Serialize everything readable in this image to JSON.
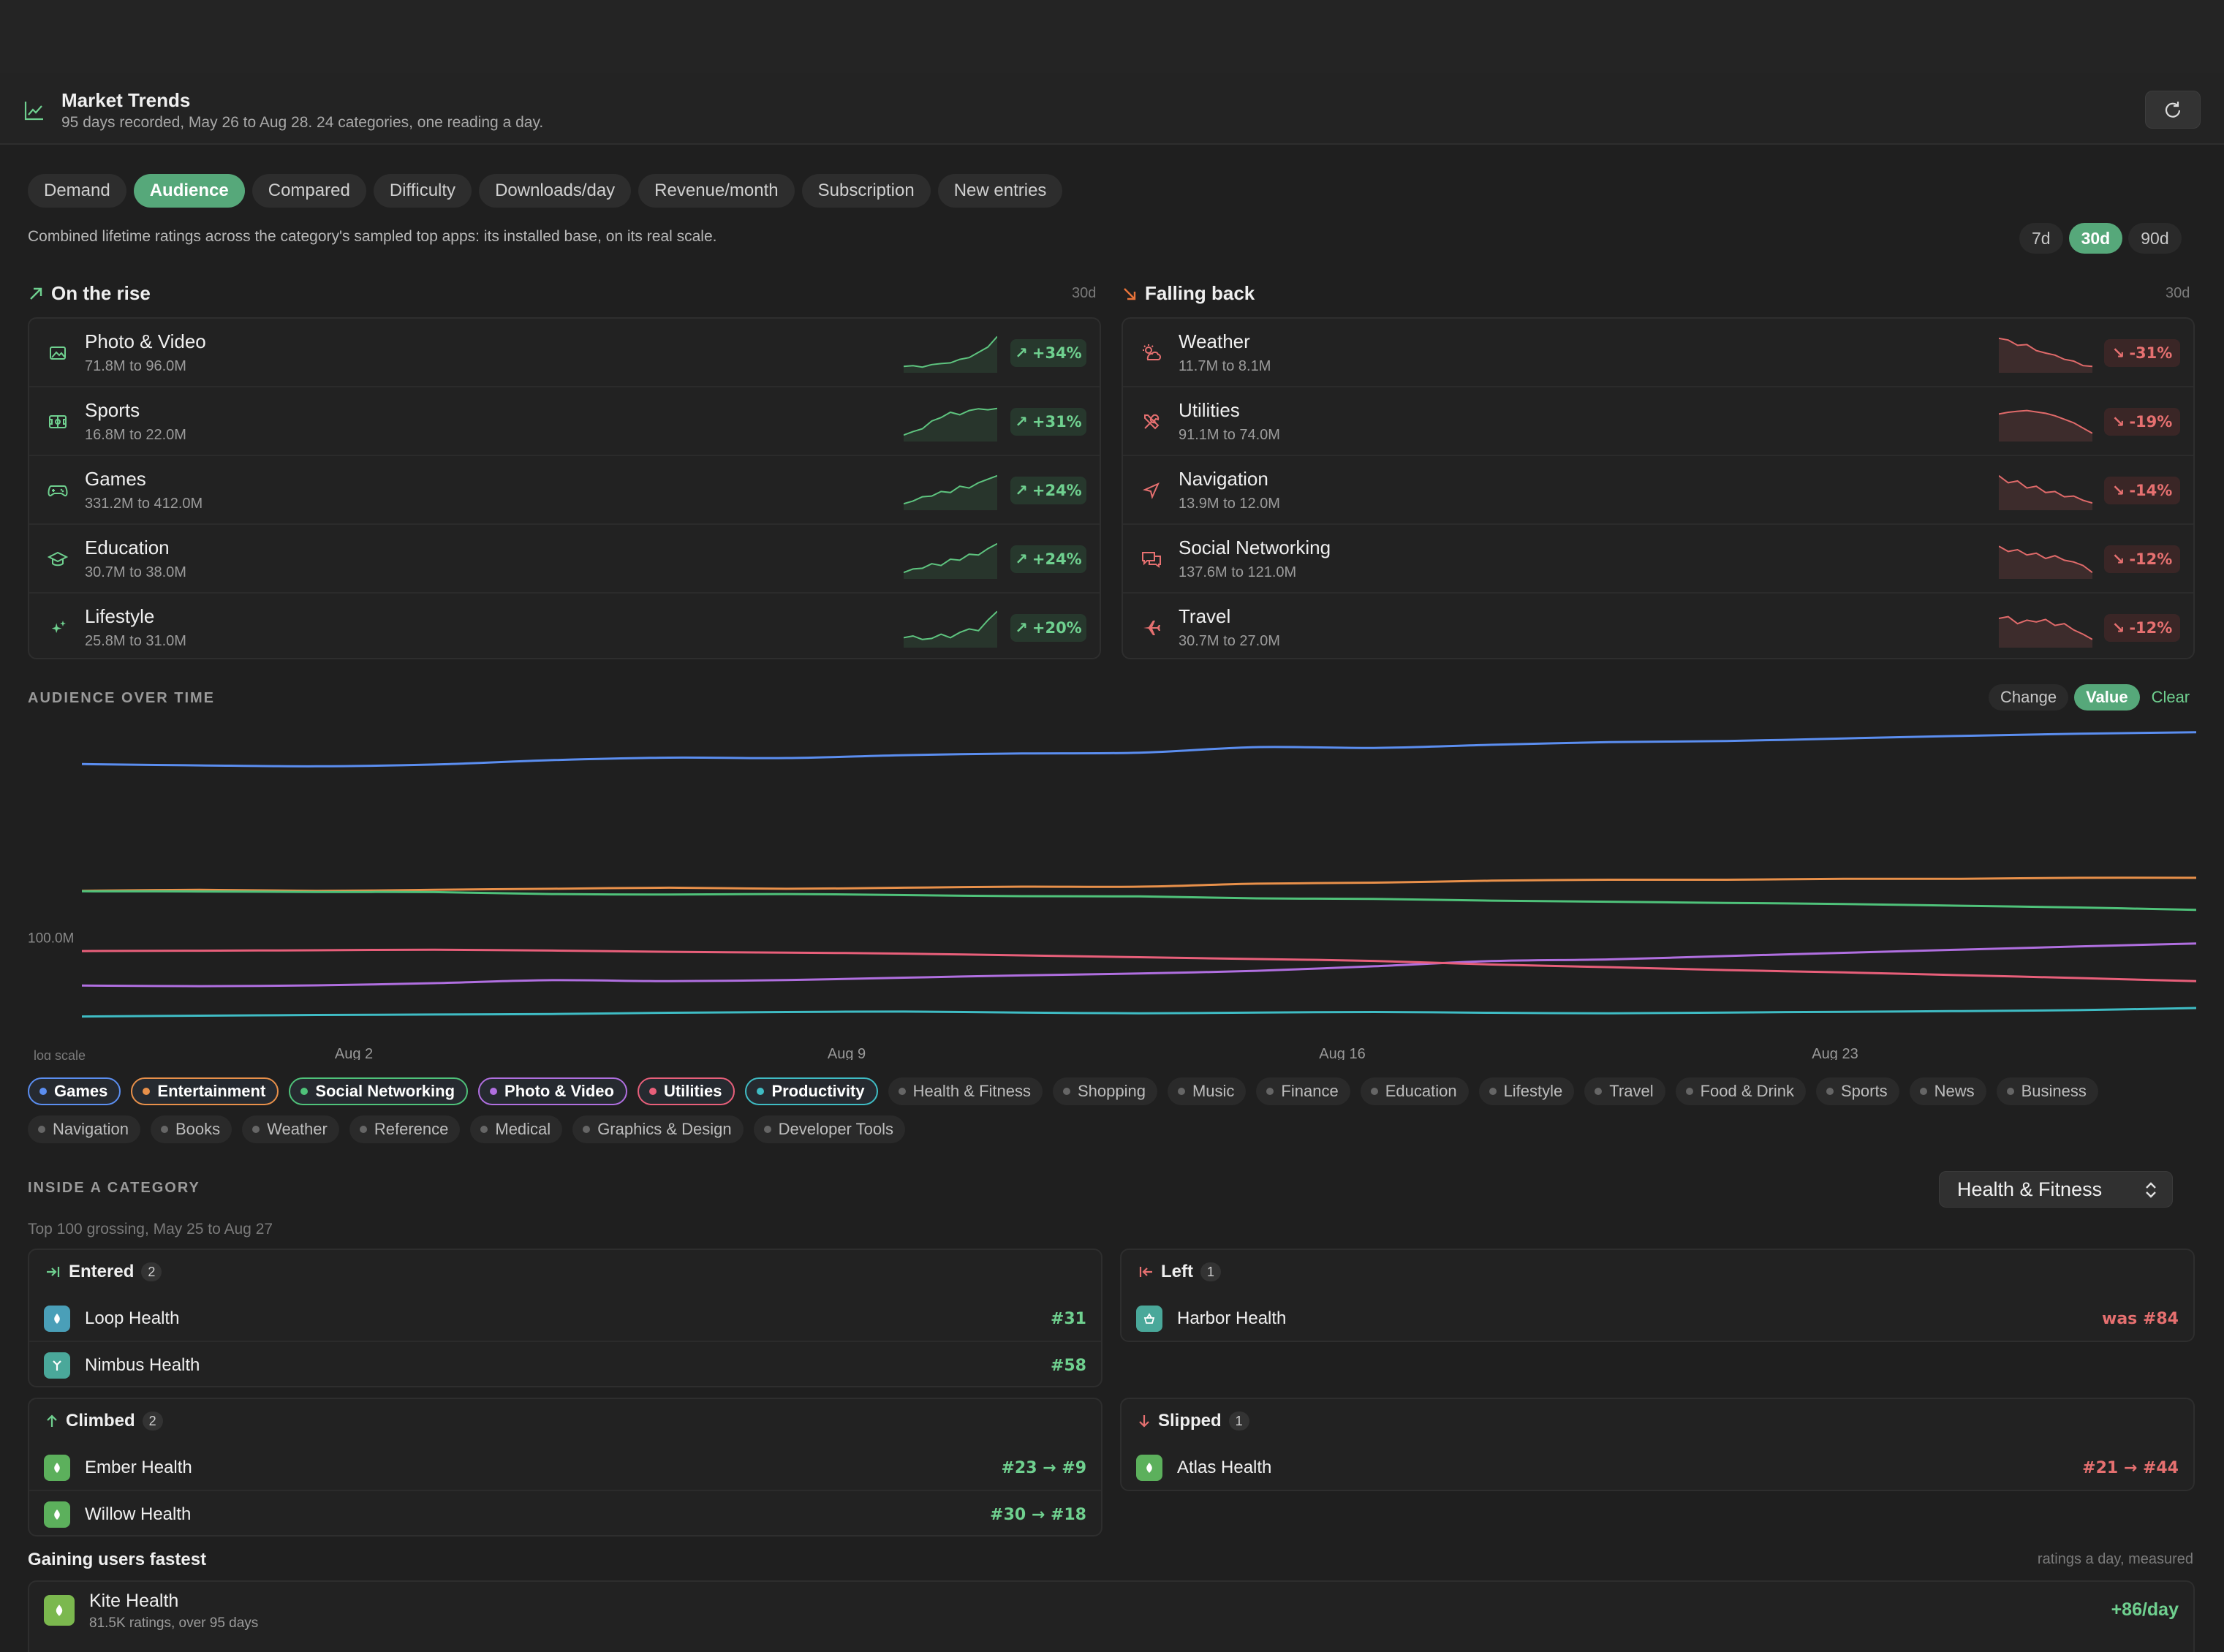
{
  "header": {
    "title": "Market Trends",
    "subtitle": "95 days recorded, May 26 to Aug 28. 24 categories, one reading a day."
  },
  "tabs": [
    {
      "label": "Demand",
      "active": false
    },
    {
      "label": "Audience",
      "active": true
    },
    {
      "label": "Compared",
      "active": false
    },
    {
      "label": "Difficulty",
      "active": false
    },
    {
      "label": "Downloads/day",
      "active": false
    },
    {
      "label": "Revenue/month",
      "active": false
    },
    {
      "label": "Subscription",
      "active": false
    },
    {
      "label": "New entries",
      "active": false
    }
  ],
  "description": "Combined lifetime ratings across the category's sampled top apps: its installed base, on its real scale.",
  "range": {
    "options": [
      "7d",
      "30d",
      "90d"
    ],
    "selected": "30d"
  },
  "rising": {
    "title": "On the rise",
    "period": "30d",
    "items": [
      {
        "name": "Photo & Video",
        "range": "71.8M to 96.0M",
        "change": "+34%",
        "icon": "photo-icon",
        "spark": [
          0.1,
          0.12,
          0.08,
          0.15,
          0.18,
          0.2,
          0.3,
          0.35,
          0.5,
          0.65,
          0.95
        ]
      },
      {
        "name": "Sports",
        "range": "16.8M to 22.0M",
        "change": "+31%",
        "icon": "sports-icon",
        "spark": [
          0.1,
          0.2,
          0.28,
          0.5,
          0.6,
          0.75,
          0.68,
          0.8,
          0.85,
          0.82,
          0.86
        ]
      },
      {
        "name": "Games",
        "range": "331.2M to 412.0M",
        "change": "+24%",
        "icon": "gamepad-icon",
        "spark": [
          0.1,
          0.18,
          0.3,
          0.32,
          0.45,
          0.42,
          0.6,
          0.55,
          0.7,
          0.8,
          0.9
        ]
      },
      {
        "name": "Education",
        "range": "30.7M to 38.0M",
        "change": "+24%",
        "icon": "graduation-cap-icon",
        "spark": [
          0.1,
          0.2,
          0.22,
          0.35,
          0.3,
          0.48,
          0.45,
          0.62,
          0.6,
          0.78,
          0.92
        ]
      },
      {
        "name": "Lifestyle",
        "range": "25.8M to 31.0M",
        "change": "+20%",
        "icon": "sparkle-icon",
        "spark": [
          0.2,
          0.25,
          0.15,
          0.18,
          0.3,
          0.2,
          0.35,
          0.45,
          0.4,
          0.7,
          0.95
        ]
      }
    ]
  },
  "falling": {
    "title": "Falling back",
    "period": "30d",
    "items": [
      {
        "name": "Weather",
        "range": "11.7M to 8.1M",
        "change": "-31%",
        "icon": "cloud-sun-icon",
        "spark": [
          0.9,
          0.85,
          0.7,
          0.72,
          0.55,
          0.48,
          0.42,
          0.3,
          0.25,
          0.12,
          0.1
        ]
      },
      {
        "name": "Utilities",
        "range": "91.1M to 74.0M",
        "change": "-19%",
        "icon": "tools-icon",
        "spark": [
          0.7,
          0.75,
          0.78,
          0.8,
          0.76,
          0.72,
          0.65,
          0.55,
          0.45,
          0.3,
          0.15
        ]
      },
      {
        "name": "Navigation",
        "range": "13.9M to 12.0M",
        "change": "-14%",
        "icon": "navigation-arrow-icon",
        "spark": [
          0.9,
          0.7,
          0.75,
          0.55,
          0.6,
          0.42,
          0.45,
          0.3,
          0.32,
          0.2,
          0.12
        ]
      },
      {
        "name": "Social Networking",
        "range": "137.6M to 121.0M",
        "change": "-12%",
        "icon": "chat-bubbles-icon",
        "spark": [
          0.85,
          0.7,
          0.75,
          0.6,
          0.65,
          0.5,
          0.58,
          0.45,
          0.4,
          0.3,
          0.1
        ]
      },
      {
        "name": "Travel",
        "range": "30.7M to 27.0M",
        "change": "-12%",
        "icon": "airplane-icon",
        "spark": [
          0.75,
          0.8,
          0.6,
          0.7,
          0.65,
          0.72,
          0.55,
          0.6,
          0.42,
          0.3,
          0.15
        ]
      }
    ]
  },
  "audience": {
    "title": "AUDIENCE OVER TIME",
    "modes": [
      {
        "label": "Change",
        "active": false
      },
      {
        "label": "Value",
        "active": true
      }
    ],
    "clear_label": "Clear"
  },
  "chart_data": {
    "type": "line",
    "y_scale": "log",
    "scale_label": "log scale",
    "ytick": "100.0M",
    "x_ticks": [
      "Aug 2",
      "Aug 9",
      "Aug 16",
      "Aug 23"
    ],
    "series": [
      {
        "name": "Games",
        "color": "#5b8ef0",
        "values": [
          331,
          328,
          326,
          330,
          340,
          346,
          345,
          352,
          356,
          358,
          372,
          370,
          378,
          385,
          388,
          395,
          402,
          408,
          412
        ]
      },
      {
        "name": "Entertainment",
        "color": "#e8904a",
        "values": [
          138,
          139,
          138,
          139,
          140,
          141,
          140,
          141,
          142,
          142,
          145,
          146,
          148,
          149,
          149,
          150,
          150,
          151,
          151
        ]
      },
      {
        "name": "Social Networking",
        "color": "#4fc27a",
        "values": [
          137.6,
          137.4,
          137,
          136.8,
          135,
          134.5,
          135,
          134,
          133,
          132.8,
          131,
          130.5,
          129,
          128,
          127,
          126,
          124.5,
          123,
          121
        ]
      },
      {
        "name": "Photo & Video",
        "color": "#b06fe0",
        "values": [
          71.8,
          71.5,
          71.9,
          73,
          74.5,
          74,
          74.6,
          75.8,
          77,
          78,
          79.5,
          82,
          85,
          86,
          88,
          90,
          92,
          94,
          96
        ]
      },
      {
        "name": "Utilities",
        "color": "#e85f7a",
        "values": [
          91.1,
          91.3,
          91.6,
          91.9,
          91.4,
          90.6,
          90.1,
          89.5,
          88.4,
          87.3,
          86.2,
          85.1,
          83,
          81.5,
          79.9,
          78.6,
          77.1,
          75.6,
          74
        ]
      },
      {
        "name": "Productivity",
        "color": "#3fbcc4",
        "values": [
          58,
          58.3,
          58.6,
          58.8,
          59,
          59.5,
          59.8,
          60,
          59.6,
          59.3,
          59.6,
          59.8,
          59.5,
          59.3,
          59.6,
          59.9,
          60.2,
          60.6,
          61.5
        ]
      }
    ]
  },
  "category_chips": [
    {
      "label": "Games",
      "on": true,
      "color": "#5b8ef0"
    },
    {
      "label": "Entertainment",
      "on": true,
      "color": "#e8904a"
    },
    {
      "label": "Social Networking",
      "on": true,
      "color": "#4fc27a"
    },
    {
      "label": "Photo & Video",
      "on": true,
      "color": "#b06fe0"
    },
    {
      "label": "Utilities",
      "on": true,
      "color": "#e85f7a"
    },
    {
      "label": "Productivity",
      "on": true,
      "color": "#3fbcc4"
    },
    {
      "label": "Health & Fitness",
      "on": false
    },
    {
      "label": "Shopping",
      "on": false
    },
    {
      "label": "Music",
      "on": false
    },
    {
      "label": "Finance",
      "on": false
    },
    {
      "label": "Education",
      "on": false
    },
    {
      "label": "Lifestyle",
      "on": false
    },
    {
      "label": "Travel",
      "on": false
    },
    {
      "label": "Food & Drink",
      "on": false
    },
    {
      "label": "Sports",
      "on": false
    },
    {
      "label": "News",
      "on": false
    },
    {
      "label": "Business",
      "on": false
    },
    {
      "label": "Navigation",
      "on": false
    },
    {
      "label": "Books",
      "on": false
    },
    {
      "label": "Weather",
      "on": false
    },
    {
      "label": "Reference",
      "on": false
    },
    {
      "label": "Medical",
      "on": false
    },
    {
      "label": "Graphics & Design",
      "on": false
    },
    {
      "label": "Developer Tools",
      "on": false
    }
  ],
  "inside": {
    "title": "INSIDE A CATEGORY",
    "subtitle": "Top 100 grossing, May 25 to Aug 27",
    "selected_category": "Health & Fitness",
    "entered": {
      "title": "Entered",
      "count": "2",
      "apps": [
        {
          "name": "Loop Health",
          "rank": "#31",
          "color": "#4a9fb8"
        },
        {
          "name": "Nimbus Health",
          "rank": "#58",
          "color": "#4aa89a"
        }
      ]
    },
    "left": {
      "title": "Left",
      "count": "1",
      "apps": [
        {
          "name": "Harbor Health",
          "rank": "was #84",
          "color": "#4aa89a"
        }
      ]
    },
    "climbed": {
      "title": "Climbed",
      "count": "2",
      "apps": [
        {
          "name": "Ember Health",
          "rank": "#23 → #9",
          "color": "#5cb05c"
        },
        {
          "name": "Willow Health",
          "rank": "#30 → #18",
          "color": "#5cb05c"
        }
      ]
    },
    "slipped": {
      "title": "Slipped",
      "count": "1",
      "apps": [
        {
          "name": "Atlas Health",
          "rank": "#21 → #44",
          "color": "#5cb05c"
        }
      ]
    }
  },
  "gaining": {
    "title": "Gaining users fastest",
    "note": "ratings a day, measured",
    "apps": [
      {
        "name": "Kite Health",
        "sub": "81.5K ratings, over 95 days",
        "rate": "+86/day"
      }
    ]
  }
}
